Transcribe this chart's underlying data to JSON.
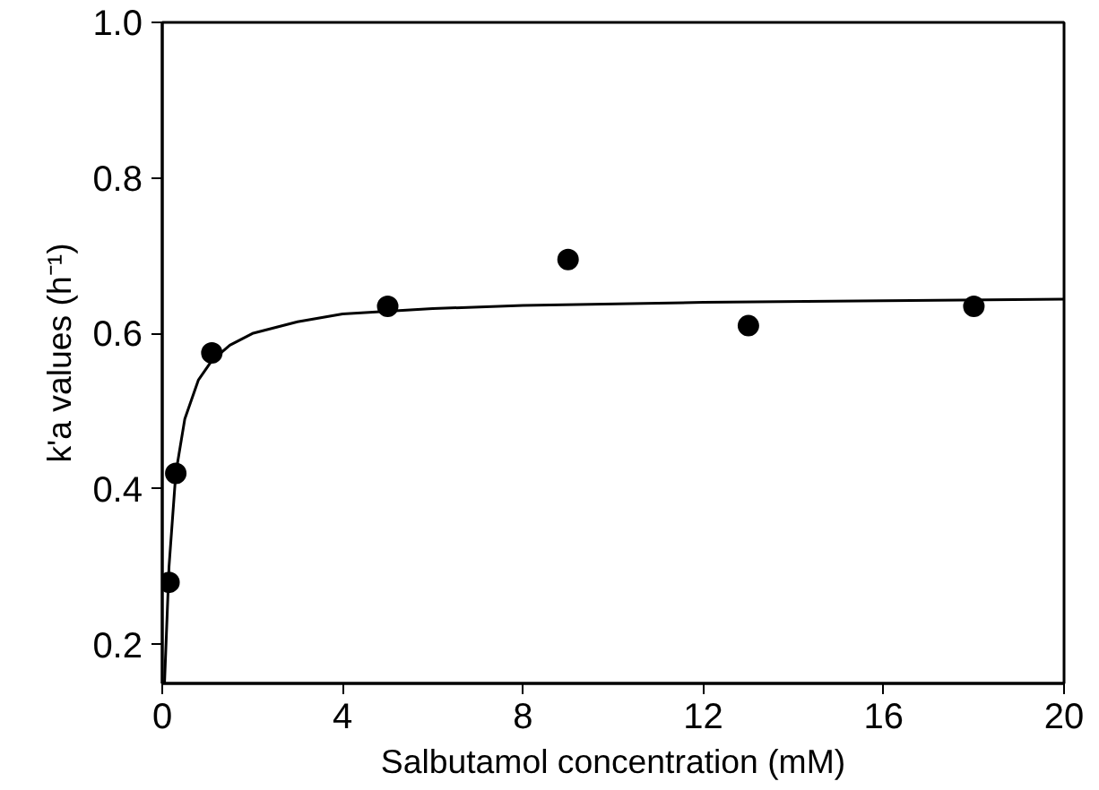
{
  "chart_data": {
    "type": "scatter",
    "xlabel": "Salbutamol concentration (mM)",
    "ylabel": "k'a values (h⁻¹)",
    "xlim": [
      0,
      20
    ],
    "ylim": [
      0.15,
      1.0
    ],
    "xticks": [
      0,
      4,
      8,
      12,
      16,
      20
    ],
    "yticks": [
      0.2,
      0.4,
      0.6,
      0.8,
      {
        "value": 1,
        "label": "1.0"
      }
    ],
    "grid": false,
    "series": [
      {
        "marker": "circle",
        "color": "#000000",
        "x": [
          0.15,
          0.3,
          1.1,
          5,
          9,
          13,
          18
        ],
        "values": [
          0.28,
          0.42,
          0.575,
          0.635,
          0.695,
          0.61,
          0.635
        ]
      },
      {
        "type": "line",
        "line_style": "solid",
        "color": "#000000",
        "x": [
          0.05,
          0.15,
          0.3,
          0.5,
          0.8,
          1.1,
          1.5,
          2,
          3,
          4,
          6,
          8,
          12,
          16,
          20
        ],
        "values": [
          0.15,
          0.3,
          0.42,
          0.49,
          0.54,
          0.565,
          0.585,
          0.6,
          0.615,
          0.625,
          0.632,
          0.636,
          0.64,
          0.642,
          0.644
        ]
      }
    ]
  }
}
